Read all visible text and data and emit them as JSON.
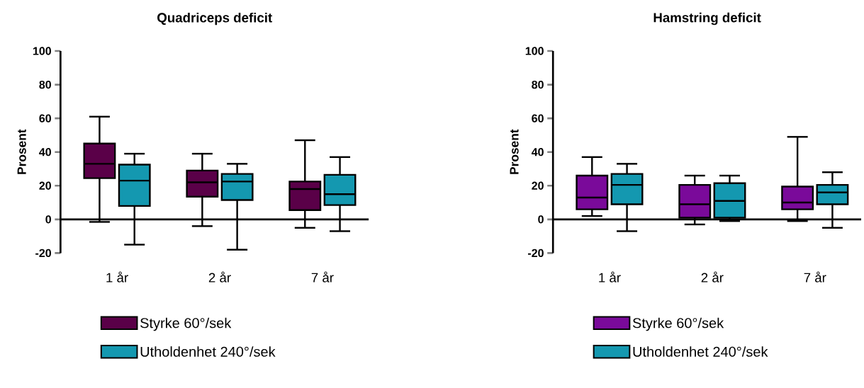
{
  "chart_data": [
    {
      "type": "box",
      "title": "Quadriceps deficit",
      "ylabel": "Prosent",
      "categories": [
        "1 år",
        "2 år",
        "7 år"
      ],
      "ylim": [
        -20,
        100
      ],
      "yticks": [
        -20,
        0,
        20,
        40,
        60,
        80,
        100
      ],
      "legend": "bottom",
      "series": [
        {
          "name": "Styrke 60°/sek",
          "color": "#5a0048",
          "boxes": [
            {
              "low": -1.5,
              "q1": 24.5,
              "median": 33,
              "q3": 45,
              "high": 61
            },
            {
              "low": -4,
              "q1": 13.5,
              "median": 22,
              "q3": 29,
              "high": 39
            },
            {
              "low": -5,
              "q1": 5.5,
              "median": 18,
              "q3": 22.5,
              "high": 47
            }
          ]
        },
        {
          "name": "Utholdenhet 240°/sek",
          "color": "#1498b0",
          "boxes": [
            {
              "low": -15,
              "q1": 8,
              "median": 23,
              "q3": 32.5,
              "high": 39
            },
            {
              "low": -18,
              "q1": 11.5,
              "median": 22.5,
              "q3": 27,
              "high": 33
            },
            {
              "low": -7,
              "q1": 8.5,
              "median": 15,
              "q3": 26.5,
              "high": 37
            }
          ]
        }
      ]
    },
    {
      "type": "box",
      "title": "Hamstring deficit",
      "ylabel": "Prosent",
      "categories": [
        "1 år",
        "2 år",
        "7 år"
      ],
      "ylim": [
        -20,
        100
      ],
      "yticks": [
        -20,
        0,
        20,
        40,
        60,
        80,
        100
      ],
      "legend": "bottom",
      "series": [
        {
          "name": "Styrke 60°/sek",
          "color": "#7a0a9a",
          "boxes": [
            {
              "low": 2,
              "q1": 6,
              "median": 13,
              "q3": 26,
              "high": 37
            },
            {
              "low": -3,
              "q1": 1,
              "median": 9,
              "q3": 20.5,
              "high": 26
            },
            {
              "low": -1,
              "q1": 6,
              "median": 10,
              "q3": 19.5,
              "high": 49
            }
          ]
        },
        {
          "name": "Utholdenhet 240°/sek",
          "color": "#1498b0",
          "boxes": [
            {
              "low": -7,
              "q1": 9,
              "median": 20.5,
              "q3": 27,
              "high": 33
            },
            {
              "low": -1,
              "q1": 1,
              "median": 11,
              "q3": 21.5,
              "high": 26
            },
            {
              "low": -5,
              "q1": 9,
              "median": 16,
              "q3": 20.5,
              "high": 28
            }
          ]
        }
      ]
    }
  ]
}
